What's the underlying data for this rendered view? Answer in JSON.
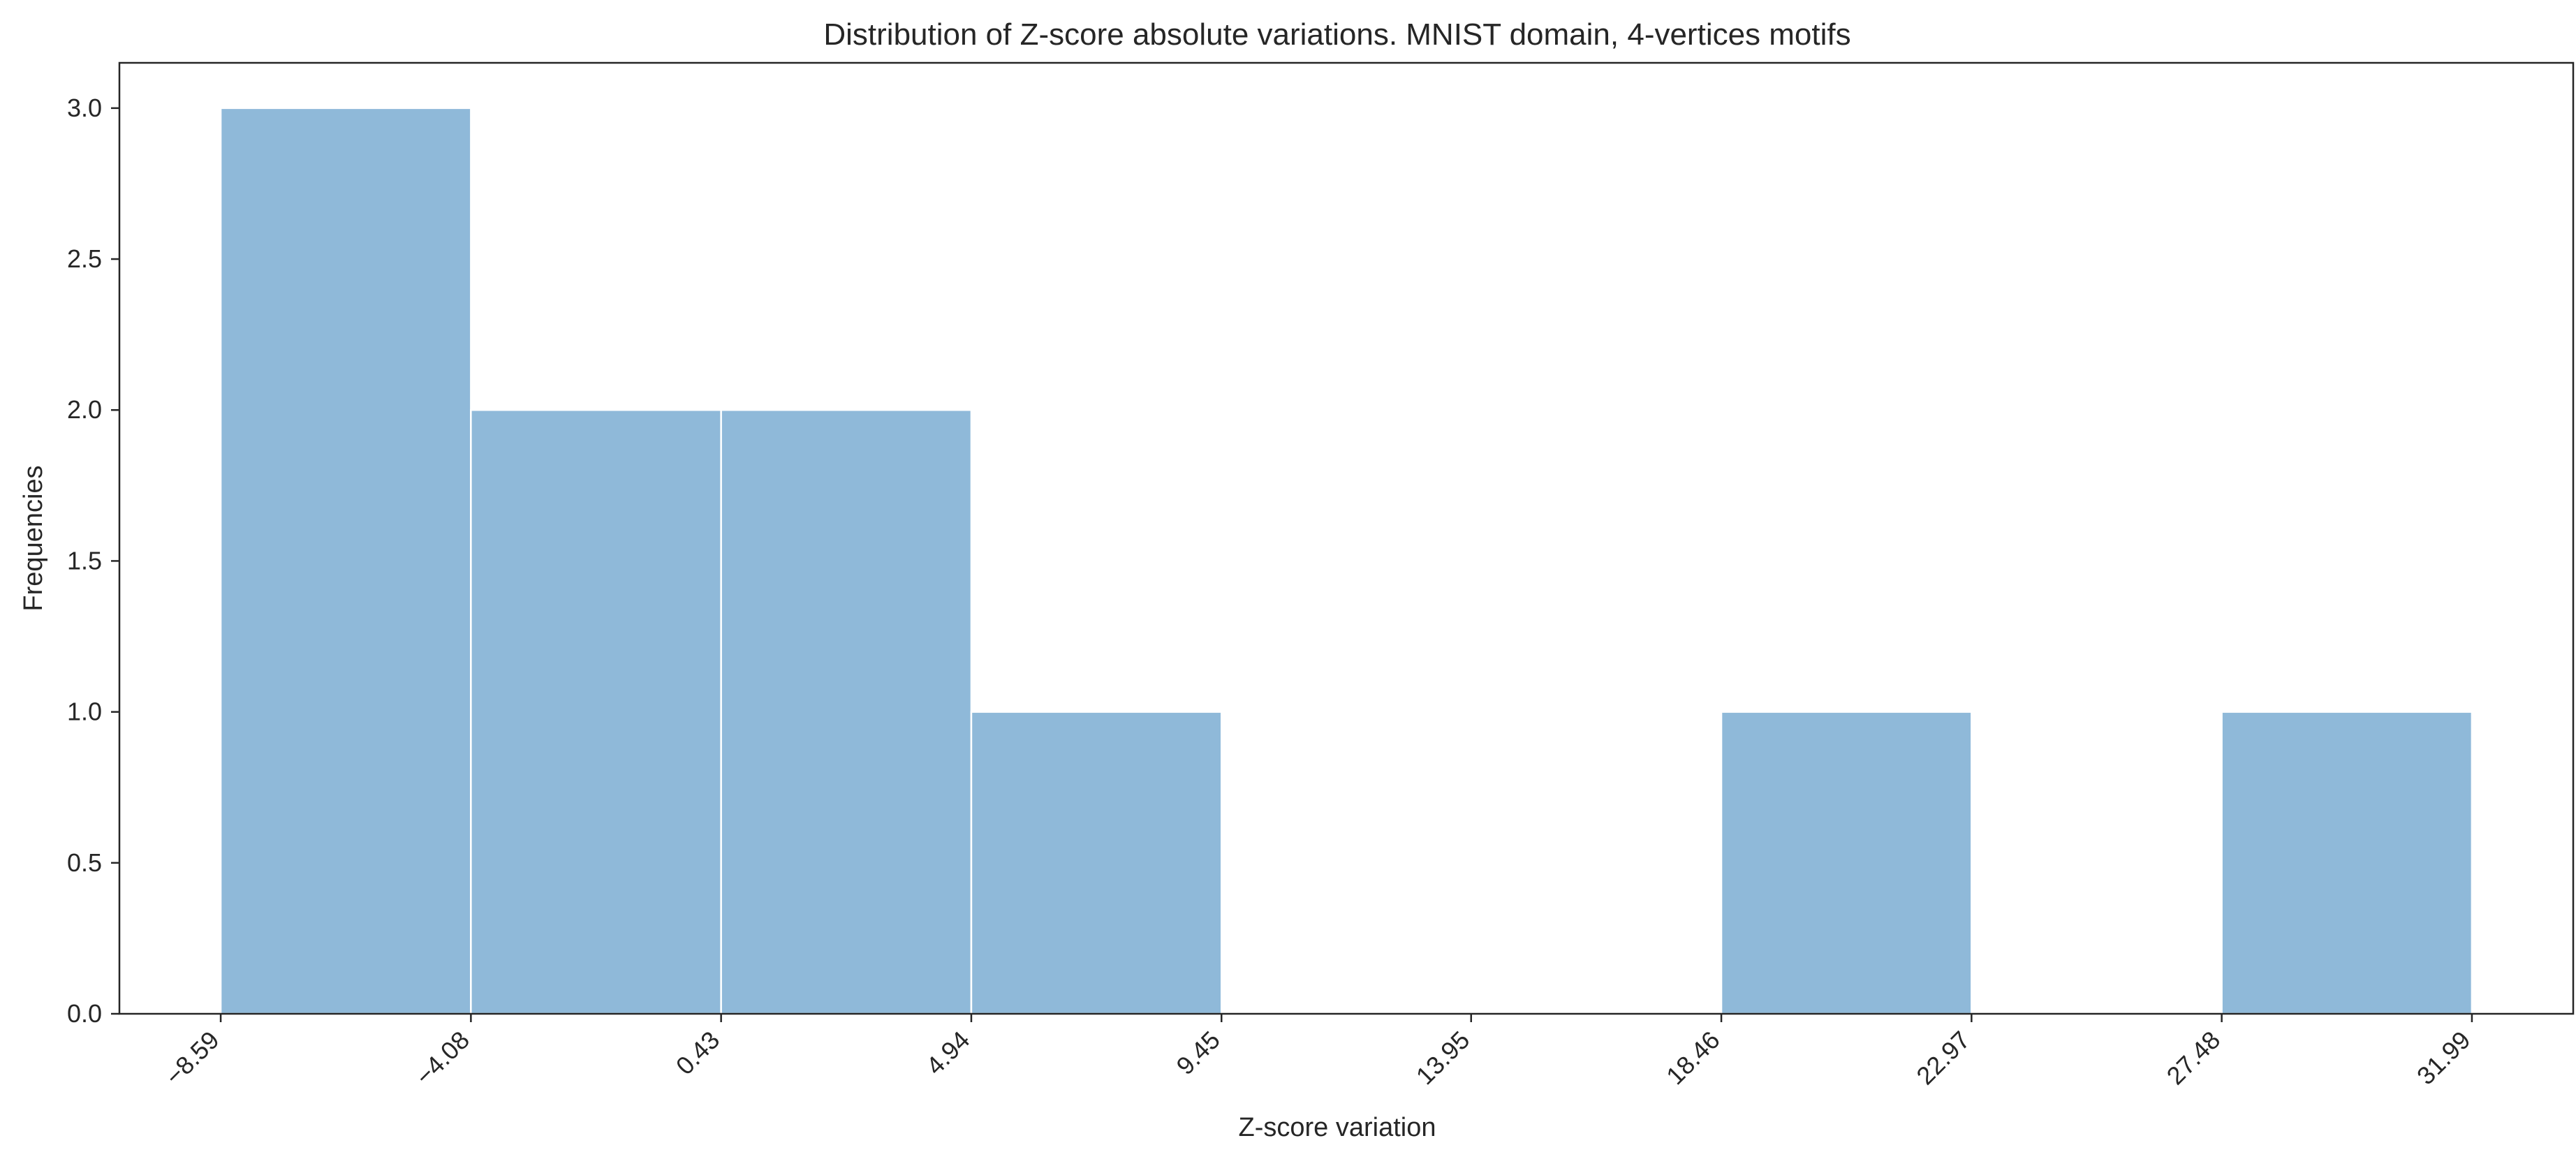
{
  "chart_data": {
    "type": "bar",
    "title": "Distribution of Z-score absolute variations. MNIST domain, 4-vertices motifs",
    "xlabel": "Z-score variation",
    "ylabel": "Frequencies",
    "bin_edges": [
      -8.59,
      -4.08,
      0.43,
      4.94,
      9.45,
      13.95,
      18.46,
      22.97,
      27.48,
      31.99
    ],
    "x_tick_labels": [
      "−8.59",
      "−4.08",
      "0.43",
      "4.94",
      "9.45",
      "13.95",
      "18.46",
      "22.97",
      "27.48",
      "31.99"
    ],
    "values": [
      3,
      2,
      2,
      1,
      0,
      0,
      1,
      0,
      1
    ],
    "ylim": [
      0,
      3.15
    ],
    "y_ticks": [
      0.0,
      0.5,
      1.0,
      1.5,
      2.0,
      2.5,
      3.0
    ],
    "y_tick_labels": [
      "0.0",
      "0.5",
      "1.0",
      "1.5",
      "2.0",
      "2.5",
      "3.0"
    ],
    "grid": false,
    "bar_color": "#8fb9d9",
    "bar_edge_color": "#ffffff",
    "axis_color": "#262626"
  }
}
